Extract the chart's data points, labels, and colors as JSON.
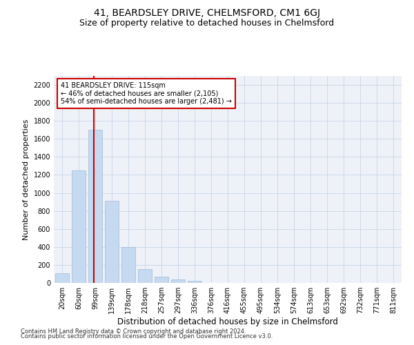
{
  "title": "41, BEARDSLEY DRIVE, CHELMSFORD, CM1 6GJ",
  "subtitle": "Size of property relative to detached houses in Chelmsford",
  "xlabel": "Distribution of detached houses by size in Chelmsford",
  "ylabel": "Number of detached properties",
  "bar_labels": [
    "20sqm",
    "60sqm",
    "99sqm",
    "139sqm",
    "178sqm",
    "218sqm",
    "257sqm",
    "297sqm",
    "336sqm",
    "376sqm",
    "416sqm",
    "455sqm",
    "495sqm",
    "534sqm",
    "574sqm",
    "613sqm",
    "653sqm",
    "692sqm",
    "732sqm",
    "771sqm",
    "811sqm"
  ],
  "bar_values": [
    110,
    1250,
    1700,
    910,
    400,
    150,
    70,
    40,
    25,
    0,
    0,
    0,
    0,
    0,
    0,
    0,
    0,
    0,
    0,
    0,
    0
  ],
  "bar_color": "#c5d9f0",
  "bar_edge_color": "#a0b8d8",
  "vline_color": "#cc0000",
  "annotation_text": "41 BEARDSLEY DRIVE: 115sqm\n← 46% of detached houses are smaller (2,105)\n54% of semi-detached houses are larger (2,481) →",
  "annotation_box_color": "#ffffff",
  "annotation_box_edge_color": "#cc0000",
  "ylim": [
    0,
    2300
  ],
  "yticks": [
    0,
    200,
    400,
    600,
    800,
    1000,
    1200,
    1400,
    1600,
    1800,
    2000,
    2200
  ],
  "grid_color": "#c8d4e8",
  "bg_color": "#eef2f8",
  "footer1": "Contains HM Land Registry data © Crown copyright and database right 2024.",
  "footer2": "Contains public sector information licensed under the Open Government Licence v3.0.",
  "title_fontsize": 10,
  "subtitle_fontsize": 9,
  "xlabel_fontsize": 8.5,
  "ylabel_fontsize": 8,
  "tick_fontsize": 7,
  "annot_fontsize": 7,
  "footer_fontsize": 6
}
